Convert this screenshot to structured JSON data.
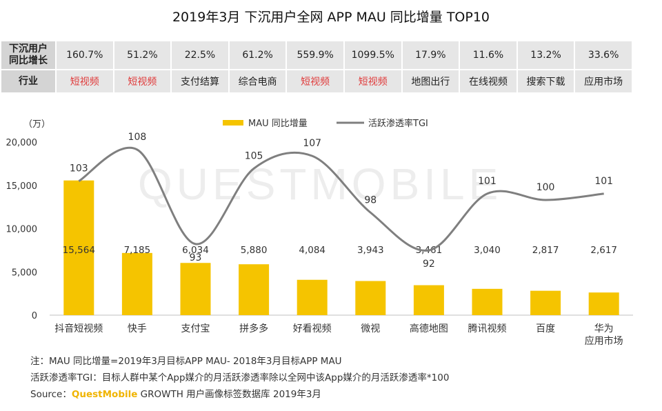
{
  "title": "2019年3月 下沉用户全网 APP MAU 同比增量 TOP10",
  "stats_table": {
    "growth_header": "下沉用户\n同比增长",
    "industry_header": "行业",
    "growth": [
      "160.7%",
      "51.2%",
      "22.5%",
      "61.2%",
      "559.9%",
      "1099.5%",
      "17.9%",
      "11.6%",
      "13.2%",
      "33.6%"
    ],
    "industry": [
      "短视频",
      "短视频",
      "支付结算",
      "综合电商",
      "短视频",
      "短视频",
      "地图出行",
      "在线视频",
      "搜索下载",
      "应用市场"
    ],
    "industry_colors": [
      "#e03b3b",
      "#e03b3b",
      "#222222",
      "#222222",
      "#e03b3b",
      "#e03b3b",
      "#222222",
      "#222222",
      "#222222",
      "#222222"
    ]
  },
  "watermark": "QUESTMOBILE",
  "chart_data": {
    "type": "bar",
    "unit": "（万）",
    "categories": [
      "抖音短视频",
      "快手",
      "支付宝",
      "拼多多",
      "好看视频",
      "微视",
      "高德地图",
      "腾讯视频",
      "百度",
      "华为\n应用市场"
    ],
    "series": [
      {
        "name": "MAU 同比增量",
        "kind": "bar",
        "color": "#f5c400",
        "values": [
          15564,
          7185,
          6034,
          5880,
          4084,
          3943,
          3461,
          3040,
          2817,
          2617
        ],
        "labels": [
          "15,564",
          "7,185",
          "6,034",
          "5,880",
          "4,084",
          "3,943",
          "3,461",
          "3,040",
          "2,817",
          "2,617"
        ]
      },
      {
        "name": "活跃渗透率TGI",
        "kind": "line",
        "color": "#7f7f7f",
        "values": [
          103,
          108,
          93,
          105,
          107,
          98,
          92,
          101,
          100,
          101
        ]
      }
    ],
    "ylim": [
      0,
      20000
    ],
    "yticks": [
      0,
      5000,
      10000,
      15000,
      20000
    ],
    "ytick_labels": [
      "0",
      "5,000",
      "10,000",
      "15,000",
      "20,000"
    ],
    "tgi_range": [
      85,
      112
    ]
  },
  "notes": {
    "line1": "注：MAU 同比增量=2019年3月目标APP MAU- 2018年3月目标APP MAU",
    "line2": "活跃渗透率TGI：目标人群中某个App媒介的月活跃渗透率除以全网中该App媒介的月活跃渗透率*100",
    "source_prefix": "Source：",
    "source_brand": "QuestMobile",
    "source_rest": " GROWTH 用户画像标签数据库 2019年3月"
  }
}
